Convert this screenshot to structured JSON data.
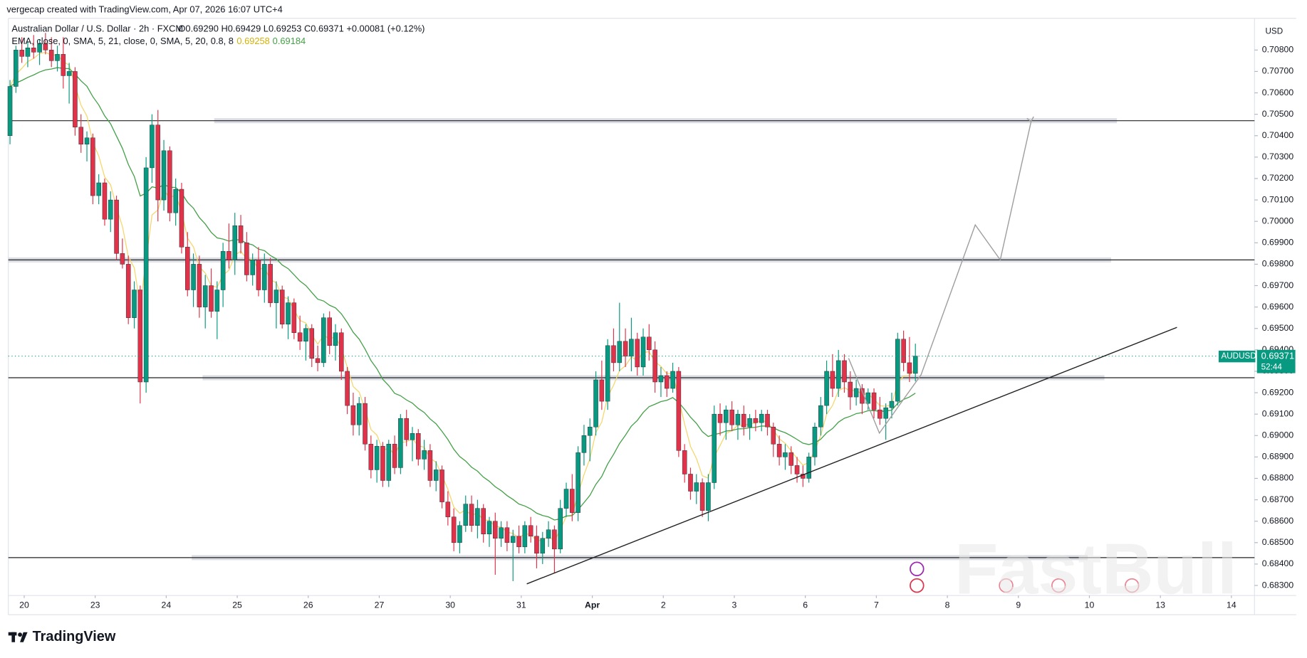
{
  "header": {
    "credit": "vergecap created with TradingView.com, Apr 07, 2026 16:07 UTC+4",
    "symbol_line": "Australian Dollar / U.S. Dollar · 2h · FXCM",
    "ohlc_line": "O0.69290 H0.69429 L0.69253 C0.69371 +0.00081 (+0.12%)",
    "indicator_line": "EMA, close, 0, SMA, 5, 21, close, 0, SMA, 5, 20, 0.8, 8",
    "fast_value": "0.69258",
    "slow_value": "0.69184",
    "currency": "USD",
    "price_symbol": "AUDUSD",
    "price_value": "0.69371",
    "countdown": "52:44",
    "footer": "TradingView",
    "watermark": "FastBull"
  },
  "chart_data": {
    "type": "candlestick",
    "series": [
      {
        "name": "AUDUSD",
        "up_color": "#089981",
        "down_color": "#e0334a",
        "ohlc": [
          [
            0.704,
            0.7066,
            0.7036,
            0.7063
          ],
          [
            0.7063,
            0.7082,
            0.706,
            0.708
          ],
          [
            0.708,
            0.7086,
            0.7074,
            0.7077
          ],
          [
            0.7077,
            0.7084,
            0.7072,
            0.7081
          ],
          [
            0.7081,
            0.7087,
            0.7076,
            0.7079
          ],
          [
            0.7079,
            0.7085,
            0.7073,
            0.7083
          ],
          [
            0.7083,
            0.7088,
            0.7078,
            0.708
          ],
          [
            0.708,
            0.7086,
            0.7072,
            0.7075
          ],
          [
            0.7075,
            0.7082,
            0.707,
            0.7078
          ],
          [
            0.7078,
            0.7086,
            0.7062,
            0.7068
          ],
          [
            0.7068,
            0.7074,
            0.7055,
            0.707
          ],
          [
            0.707,
            0.7072,
            0.704,
            0.7044
          ],
          [
            0.7044,
            0.705,
            0.7032,
            0.7036
          ],
          [
            0.7036,
            0.7042,
            0.7028,
            0.7039
          ],
          [
            0.7039,
            0.7041,
            0.7008,
            0.7012
          ],
          [
            0.7012,
            0.7022,
            0.7008,
            0.7018
          ],
          [
            0.7018,
            0.702,
            0.6998,
            0.7001
          ],
          [
            0.7001,
            0.7014,
            0.6995,
            0.701
          ],
          [
            0.701,
            0.7012,
            0.6982,
            0.6985
          ],
          [
            0.6985,
            0.6992,
            0.6978,
            0.698
          ],
          [
            0.698,
            0.6984,
            0.6952,
            0.6955
          ],
          [
            0.6955,
            0.6972,
            0.695,
            0.6968
          ],
          [
            0.6968,
            0.697,
            0.6915,
            0.6925
          ],
          [
            0.6925,
            0.703,
            0.692,
            0.7025
          ],
          [
            0.7025,
            0.705,
            0.7018,
            0.7045
          ],
          [
            0.7045,
            0.7052,
            0.7,
            0.701
          ],
          [
            0.701,
            0.7038,
            0.7005,
            0.7033
          ],
          [
            0.7033,
            0.7035,
            0.7,
            0.7004
          ],
          [
            0.7004,
            0.702,
            0.6998,
            0.7015
          ],
          [
            0.7015,
            0.7018,
            0.6985,
            0.6988
          ],
          [
            0.6988,
            0.6995,
            0.6965,
            0.6968
          ],
          [
            0.6968,
            0.6985,
            0.696,
            0.698
          ],
          [
            0.698,
            0.6984,
            0.6955,
            0.696
          ],
          [
            0.696,
            0.6975,
            0.695,
            0.697
          ],
          [
            0.697,
            0.6978,
            0.6955,
            0.6958
          ],
          [
            0.6958,
            0.6972,
            0.6945,
            0.6968
          ],
          [
            0.6968,
            0.699,
            0.696,
            0.6986
          ],
          [
            0.6986,
            0.6999,
            0.6978,
            0.6982
          ],
          [
            0.6982,
            0.7004,
            0.6975,
            0.6998
          ],
          [
            0.6998,
            0.7003,
            0.6985,
            0.699
          ],
          [
            0.699,
            0.6995,
            0.6972,
            0.6975
          ],
          [
            0.6975,
            0.6985,
            0.697,
            0.6982
          ],
          [
            0.6982,
            0.6988,
            0.6965,
            0.6968
          ],
          [
            0.6968,
            0.6985,
            0.6962,
            0.698
          ],
          [
            0.698,
            0.6983,
            0.696,
            0.6962
          ],
          [
            0.6962,
            0.6972,
            0.695,
            0.6968
          ],
          [
            0.6968,
            0.697,
            0.695,
            0.6952
          ],
          [
            0.6952,
            0.6965,
            0.6945,
            0.6962
          ],
          [
            0.6962,
            0.6964,
            0.6945,
            0.6948
          ],
          [
            0.6948,
            0.6956,
            0.694,
            0.6944
          ],
          [
            0.6944,
            0.6952,
            0.6935,
            0.695
          ],
          [
            0.695,
            0.6952,
            0.6932,
            0.6936
          ],
          [
            0.6936,
            0.6942,
            0.693,
            0.6934
          ],
          [
            0.6934,
            0.6957,
            0.6932,
            0.6955
          ],
          [
            0.6955,
            0.6958,
            0.6938,
            0.6942
          ],
          [
            0.6942,
            0.6952,
            0.6935,
            0.6948
          ],
          [
            0.6948,
            0.695,
            0.6926,
            0.693
          ],
          [
            0.693,
            0.6932,
            0.691,
            0.6914
          ],
          [
            0.6914,
            0.692,
            0.69,
            0.6905
          ],
          [
            0.6905,
            0.6918,
            0.69,
            0.6915
          ],
          [
            0.6915,
            0.6918,
            0.6893,
            0.6896
          ],
          [
            0.6896,
            0.69,
            0.688,
            0.6884
          ],
          [
            0.6884,
            0.6898,
            0.6878,
            0.6895
          ],
          [
            0.6895,
            0.6897,
            0.6876,
            0.6879
          ],
          [
            0.6879,
            0.6898,
            0.6876,
            0.6896
          ],
          [
            0.6896,
            0.69,
            0.6882,
            0.6885
          ],
          [
            0.6885,
            0.691,
            0.6882,
            0.6908
          ],
          [
            0.6908,
            0.6912,
            0.6895,
            0.6898
          ],
          [
            0.6898,
            0.6904,
            0.6888,
            0.6901
          ],
          [
            0.6901,
            0.6903,
            0.6886,
            0.6889
          ],
          [
            0.6889,
            0.6898,
            0.6884,
            0.6893
          ],
          [
            0.6893,
            0.6896,
            0.6876,
            0.6879
          ],
          [
            0.6879,
            0.6888,
            0.6874,
            0.6884
          ],
          [
            0.6884,
            0.6886,
            0.6866,
            0.6869
          ],
          [
            0.6869,
            0.6874,
            0.6858,
            0.6862
          ],
          [
            0.6862,
            0.6866,
            0.6846,
            0.685
          ],
          [
            0.685,
            0.686,
            0.6845,
            0.6858
          ],
          [
            0.6858,
            0.6872,
            0.6855,
            0.6868
          ],
          [
            0.6868,
            0.6872,
            0.6855,
            0.6858
          ],
          [
            0.6858,
            0.687,
            0.6852,
            0.6866
          ],
          [
            0.6866,
            0.6868,
            0.685,
            0.6854
          ],
          [
            0.6854,
            0.6862,
            0.6848,
            0.686
          ],
          [
            0.686,
            0.6864,
            0.6835,
            0.6852
          ],
          [
            0.6852,
            0.686,
            0.6848,
            0.6857
          ],
          [
            0.6857,
            0.686,
            0.6846,
            0.685
          ],
          [
            0.685,
            0.6856,
            0.6832,
            0.6853
          ],
          [
            0.6853,
            0.6858,
            0.6845,
            0.6848
          ],
          [
            0.6848,
            0.686,
            0.6845,
            0.6858
          ],
          [
            0.6858,
            0.6862,
            0.685,
            0.6853
          ],
          [
            0.6853,
            0.6858,
            0.6838,
            0.6845
          ],
          [
            0.6845,
            0.6855,
            0.684,
            0.6852
          ],
          [
            0.6852,
            0.686,
            0.6848,
            0.6856
          ],
          [
            0.6856,
            0.6858,
            0.6836,
            0.6847
          ],
          [
            0.6847,
            0.687,
            0.6845,
            0.6866
          ],
          [
            0.6866,
            0.6878,
            0.6862,
            0.6875
          ],
          [
            0.6875,
            0.6882,
            0.686,
            0.6864
          ],
          [
            0.6864,
            0.6895,
            0.686,
            0.6892
          ],
          [
            0.6892,
            0.6905,
            0.6886,
            0.69
          ],
          [
            0.69,
            0.6908,
            0.6888,
            0.6904
          ],
          [
            0.6904,
            0.693,
            0.69,
            0.6926
          ],
          [
            0.6926,
            0.6935,
            0.6912,
            0.6916
          ],
          [
            0.6916,
            0.6945,
            0.6912,
            0.6942
          ],
          [
            0.6942,
            0.695,
            0.693,
            0.6934
          ],
          [
            0.6934,
            0.6962,
            0.693,
            0.6944
          ],
          [
            0.6944,
            0.695,
            0.6932,
            0.6937
          ],
          [
            0.6937,
            0.6955,
            0.693,
            0.6945
          ],
          [
            0.6945,
            0.6948,
            0.6928,
            0.6932
          ],
          [
            0.6932,
            0.695,
            0.6928,
            0.6946
          ],
          [
            0.6946,
            0.6952,
            0.6935,
            0.694
          ],
          [
            0.694,
            0.6944,
            0.692,
            0.6925
          ],
          [
            0.6925,
            0.6932,
            0.6918,
            0.6928
          ],
          [
            0.6928,
            0.693,
            0.6918,
            0.6922
          ],
          [
            0.6922,
            0.6934,
            0.692,
            0.693
          ],
          [
            0.693,
            0.6932,
            0.689,
            0.6893
          ],
          [
            0.6893,
            0.6896,
            0.6878,
            0.6882
          ],
          [
            0.6882,
            0.6885,
            0.687,
            0.6874
          ],
          [
            0.6874,
            0.6882,
            0.6868,
            0.6878
          ],
          [
            0.6878,
            0.688,
            0.6862,
            0.6865
          ],
          [
            0.6865,
            0.6882,
            0.686,
            0.6878
          ],
          [
            0.6878,
            0.6914,
            0.6875,
            0.691
          ],
          [
            0.691,
            0.6915,
            0.69,
            0.6906
          ],
          [
            0.6906,
            0.6914,
            0.6898,
            0.6912
          ],
          [
            0.6912,
            0.6916,
            0.6902,
            0.6905
          ],
          [
            0.6905,
            0.6912,
            0.6898,
            0.691
          ],
          [
            0.691,
            0.6914,
            0.69,
            0.6904
          ],
          [
            0.6904,
            0.691,
            0.6898,
            0.6908
          ],
          [
            0.6908,
            0.6912,
            0.6902,
            0.6906
          ],
          [
            0.6906,
            0.6912,
            0.6902,
            0.691
          ],
          [
            0.691,
            0.6912,
            0.69,
            0.6904
          ],
          [
            0.6904,
            0.6906,
            0.689,
            0.6896
          ],
          [
            0.6896,
            0.69,
            0.6886,
            0.689
          ],
          [
            0.689,
            0.6896,
            0.6884,
            0.6892
          ],
          [
            0.6892,
            0.6895,
            0.6882,
            0.6886
          ],
          [
            0.6886,
            0.689,
            0.6878,
            0.6882
          ],
          [
            0.6882,
            0.6886,
            0.6876,
            0.688
          ],
          [
            0.688,
            0.6892,
            0.6878,
            0.689
          ],
          [
            0.689,
            0.6906,
            0.6886,
            0.6904
          ],
          [
            0.6904,
            0.6918,
            0.69,
            0.6914
          ],
          [
            0.6914,
            0.6935,
            0.691,
            0.693
          ],
          [
            0.693,
            0.6938,
            0.6918,
            0.6922
          ],
          [
            0.6922,
            0.694,
            0.6918,
            0.6935
          ],
          [
            0.6935,
            0.6938,
            0.692,
            0.6925
          ],
          [
            0.6925,
            0.693,
            0.6912,
            0.6918
          ],
          [
            0.6918,
            0.6926,
            0.6914,
            0.6922
          ],
          [
            0.6922,
            0.6924,
            0.691,
            0.6915
          ],
          [
            0.6915,
            0.6922,
            0.6912,
            0.692
          ],
          [
            0.692,
            0.6922,
            0.6908,
            0.6912
          ],
          [
            0.6912,
            0.6918,
            0.6905,
            0.6908
          ],
          [
            0.6908,
            0.6915,
            0.6898,
            0.6913
          ],
          [
            0.6913,
            0.692,
            0.6908,
            0.6916
          ],
          [
            0.6916,
            0.6948,
            0.6914,
            0.6945
          ],
          [
            0.6945,
            0.6949,
            0.693,
            0.6934
          ],
          [
            0.6934,
            0.6946,
            0.6925,
            0.6929
          ],
          [
            0.6929,
            0.69429,
            0.69253,
            0.69371
          ]
        ]
      }
    ],
    "ma_lines": [
      {
        "length": 5,
        "color": "#f5d76e"
      },
      {
        "length": 20,
        "color": "#43a047"
      }
    ],
    "levels": [
      0.7047,
      0.6982,
      0.6927,
      0.6843
    ],
    "last_line_color": "#089981",
    "xlim": [
      -0.28,
      210.3
    ],
    "ylim": [
      0.68253,
      0.70948
    ],
    "xticks": [
      {
        "value": 2.4,
        "label": "20"
      },
      {
        "value": 14.4,
        "label": "23"
      },
      {
        "value": 26.4,
        "label": "24"
      },
      {
        "value": 38.4,
        "label": "25"
      },
      {
        "value": 50.4,
        "label": "26"
      },
      {
        "value": 62.4,
        "label": "27"
      },
      {
        "value": 74.4,
        "label": "30"
      },
      {
        "value": 86.4,
        "label": "31"
      },
      {
        "value": 98.4,
        "label": "Apr"
      },
      {
        "value": 110.4,
        "label": "2"
      },
      {
        "value": 122.4,
        "label": "3"
      },
      {
        "value": 134.4,
        "label": "6"
      },
      {
        "value": 146.4,
        "label": "7"
      },
      {
        "value": 158.4,
        "label": "8"
      },
      {
        "value": 170.4,
        "label": "9"
      },
      {
        "value": 182.4,
        "label": "10"
      },
      {
        "value": 194.4,
        "label": "13"
      },
      {
        "value": 206.4,
        "label": "14"
      }
    ],
    "yticks": [
      {
        "value": 0.708,
        "label": "0.70800"
      },
      {
        "value": 0.707,
        "label": "0.70700"
      },
      {
        "value": 0.706,
        "label": "0.70600"
      },
      {
        "value": 0.705,
        "label": "0.70500"
      },
      {
        "value": 0.704,
        "label": "0.70400"
      },
      {
        "value": 0.703,
        "label": "0.70300"
      },
      {
        "value": 0.702,
        "label": "0.70200"
      },
      {
        "value": 0.701,
        "label": "0.70100"
      },
      {
        "value": 0.7,
        "label": "0.70000"
      },
      {
        "value": 0.699,
        "label": "0.69900"
      },
      {
        "value": 0.698,
        "label": "0.69800"
      },
      {
        "value": 0.697,
        "label": "0.69700"
      },
      {
        "value": 0.696,
        "label": "0.69600"
      },
      {
        "value": 0.695,
        "label": "0.69500"
      },
      {
        "value": 0.694,
        "label": "0.69400"
      },
      {
        "value": 0.693,
        "label": "0.69300"
      },
      {
        "value": 0.692,
        "label": "0.69200"
      },
      {
        "value": 0.691,
        "label": "0.69100"
      },
      {
        "value": 0.69,
        "label": "0.69000"
      },
      {
        "value": 0.689,
        "label": "0.68900"
      },
      {
        "value": 0.688,
        "label": "0.68800"
      },
      {
        "value": 0.687,
        "label": "0.68700"
      },
      {
        "value": 0.686,
        "label": "0.68600"
      },
      {
        "value": 0.685,
        "label": "0.68500"
      },
      {
        "value": 0.684,
        "label": "0.68400"
      },
      {
        "value": 0.683,
        "label": "0.68300"
      }
    ]
  }
}
